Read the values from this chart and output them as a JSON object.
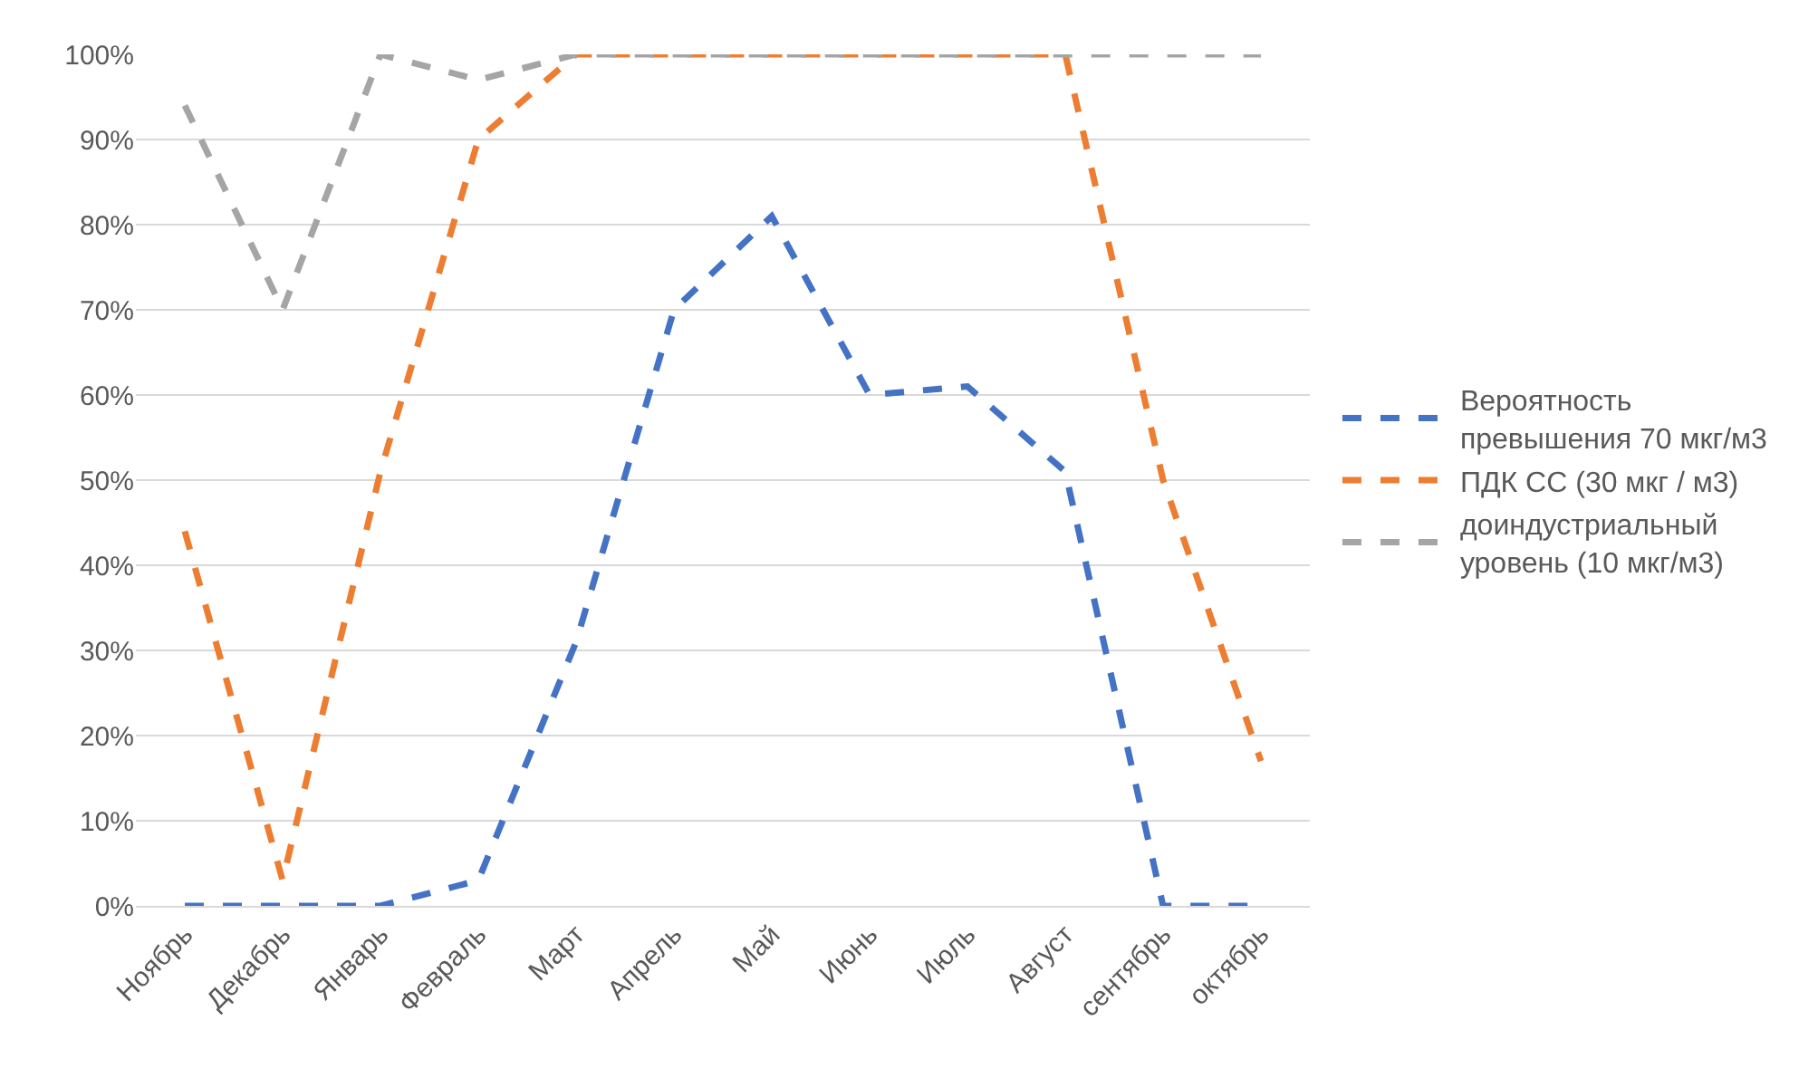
{
  "chart_data": {
    "type": "line",
    "categories": [
      "Ноябрь",
      "Декабрь",
      "Январь",
      "Февраль",
      "Март",
      "Апрель",
      "Май",
      "Июнь",
      "Июль",
      "Август",
      "сентябрь",
      "октябрь"
    ],
    "series": [
      {
        "name": "Вероятность\nпревышения 70 мкг/м3",
        "color": "#4472c4",
        "values": [
          0,
          0,
          0,
          3,
          31,
          70,
          81,
          60,
          61,
          51,
          0,
          0
        ]
      },
      {
        "name": "ПДК СС (30 мкг / м3)",
        "color": "#ed7d31",
        "values": [
          44,
          3,
          51,
          90,
          100,
          100,
          100,
          100,
          100,
          100,
          50,
          17
        ]
      },
      {
        "name": "доиндустриальный\nуровень (10 мкг/м3)",
        "color": "#a5a5a5",
        "values": [
          94,
          70,
          100,
          97,
          100,
          100,
          100,
          100,
          100,
          100,
          100,
          100
        ]
      }
    ],
    "ylim": [
      0,
      100
    ],
    "yticks": [
      {
        "value": 0,
        "label": "0%"
      },
      {
        "value": 10,
        "label": "10%"
      },
      {
        "value": 20,
        "label": "20%"
      },
      {
        "value": 30,
        "label": "30%"
      },
      {
        "value": 40,
        "label": "40%"
      },
      {
        "value": 50,
        "label": "50%"
      },
      {
        "value": 60,
        "label": "60%"
      },
      {
        "value": 70,
        "label": "70%"
      },
      {
        "value": 80,
        "label": "80%"
      },
      {
        "value": 90,
        "label": "90%"
      },
      {
        "value": 100,
        "label": "100%"
      }
    ],
    "grid": "y",
    "legend": "right",
    "line_style": "dashed",
    "marker": "none"
  }
}
